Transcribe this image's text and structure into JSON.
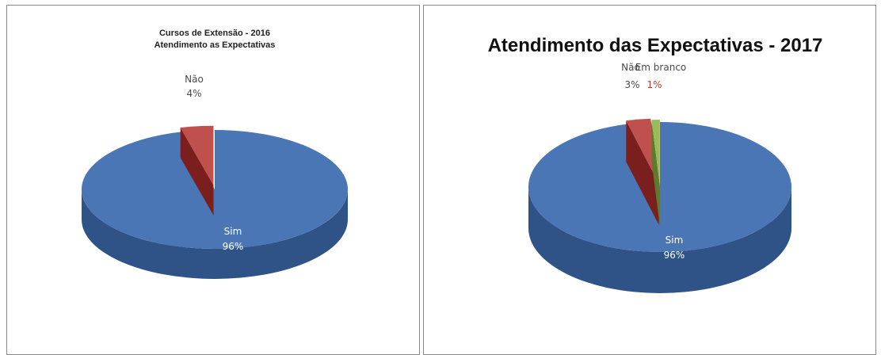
{
  "colors": {
    "sim": "#4a76b6",
    "sim_side": "#2f5287",
    "nao": "#c0504d",
    "nao_side": "#7a1f1d",
    "branco": "#9bbb59",
    "branco_side": "#5f7a2c"
  },
  "chart_data": [
    {
      "type": "pie",
      "title": "Cursos de Extensão - 2016",
      "subtitle": "Atendimento as Expectativas",
      "slices": [
        {
          "label": "Sim",
          "value": 96,
          "value_text": "96%"
        },
        {
          "label": "Não",
          "value": 4,
          "value_text": "4%"
        }
      ]
    },
    {
      "type": "pie",
      "title": "Atendimento das Expectativas - 2017",
      "slices": [
        {
          "label": "Sim",
          "value": 96,
          "value_text": "96%"
        },
        {
          "label": "Não",
          "value": 3,
          "value_text": "3%"
        },
        {
          "label": "Em branco",
          "value": 1,
          "value_text": "1%"
        }
      ]
    }
  ]
}
